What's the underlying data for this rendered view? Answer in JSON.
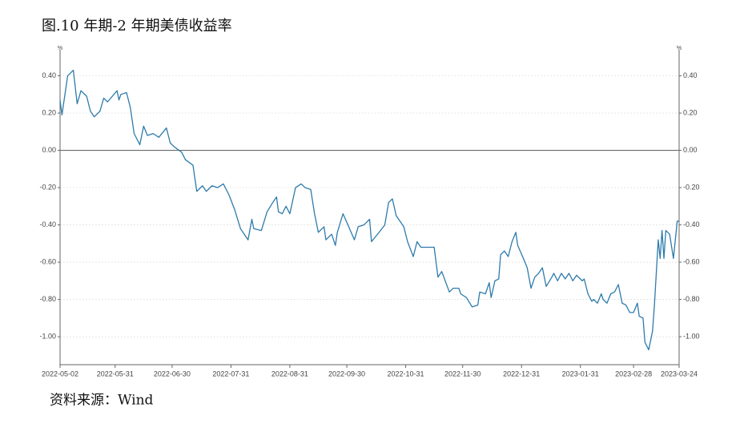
{
  "chart_data": {
    "type": "line",
    "title": "图.10 年期-2 年期美债收益率",
    "source": "资料来源：Wind",
    "y_unit": "%",
    "y2_unit": "%",
    "color": "#2e7bab",
    "x": [
      "2022-05-02",
      "2022-05-03",
      "2022-05-06",
      "2022-05-09",
      "2022-05-11",
      "2022-05-13",
      "2022-05-16",
      "2022-05-18",
      "2022-05-20",
      "2022-05-23",
      "2022-05-25",
      "2022-05-27",
      "2022-06-01",
      "2022-06-02",
      "2022-06-03",
      "2022-06-06",
      "2022-06-08",
      "2022-06-10",
      "2022-06-13",
      "2022-06-15",
      "2022-06-17",
      "2022-06-20",
      "2022-06-23",
      "2022-06-27",
      "2022-06-29",
      "2022-07-01",
      "2022-07-05",
      "2022-07-07",
      "2022-07-11",
      "2022-07-13",
      "2022-07-16",
      "2022-07-18",
      "2022-07-21",
      "2022-07-24",
      "2022-07-27",
      "2022-07-30",
      "2022-08-02",
      "2022-08-05",
      "2022-08-09",
      "2022-08-11",
      "2022-08-12",
      "2022-08-16",
      "2022-08-19",
      "2022-08-22",
      "2022-08-24",
      "2022-08-25",
      "2022-08-27",
      "2022-08-29",
      "2022-08-31",
      "2022-09-03",
      "2022-09-06",
      "2022-09-08",
      "2022-09-11",
      "2022-09-13",
      "2022-09-15",
      "2022-09-18",
      "2022-09-19",
      "2022-09-22",
      "2022-09-24",
      "2022-09-25",
      "2022-09-28",
      "2022-10-01",
      "2022-10-04",
      "2022-10-06",
      "2022-10-09",
      "2022-10-12",
      "2022-10-13",
      "2022-10-17",
      "2022-10-20",
      "2022-10-22",
      "2022-10-24",
      "2022-10-26",
      "2022-10-30",
      "2022-11-01",
      "2022-11-04",
      "2022-11-06",
      "2022-11-08",
      "2022-11-12",
      "2022-11-15",
      "2022-11-17",
      "2022-11-19",
      "2022-11-23",
      "2022-11-25",
      "2022-11-28",
      "2022-11-29",
      "2022-12-02",
      "2022-12-05",
      "2022-12-08",
      "2022-12-09",
      "2022-12-12",
      "2022-12-14",
      "2022-12-15",
      "2022-12-17",
      "2022-12-19",
      "2022-12-20",
      "2022-12-22",
      "2022-12-24",
      "2022-12-26",
      "2022-12-28",
      "2022-12-29",
      "2023-01-01",
      "2023-01-03",
      "2023-01-05",
      "2023-01-07",
      "2023-01-09",
      "2023-01-11",
      "2023-01-13",
      "2023-01-16",
      "2023-01-17",
      "2023-01-19",
      "2023-01-21",
      "2023-01-23",
      "2023-01-25",
      "2023-01-27",
      "2023-01-29",
      "2023-02-01",
      "2023-02-02",
      "2023-02-04",
      "2023-02-06",
      "2023-02-07",
      "2023-02-09",
      "2023-02-11",
      "2023-02-12",
      "2023-02-14",
      "2023-02-16",
      "2023-02-18",
      "2023-02-20",
      "2023-02-22",
      "2023-02-24",
      "2023-02-26",
      "2023-02-28",
      "2023-03-02",
      "2023-03-03",
      "2023-03-05",
      "2023-03-06",
      "2023-03-08",
      "2023-03-10",
      "2023-03-11",
      "2023-03-13",
      "2023-03-14",
      "2023-03-15",
      "2023-03-16",
      "2023-03-17",
      "2023-03-19",
      "2023-03-21",
      "2023-03-22",
      "2023-03-23",
      "2023-03-24"
    ],
    "values": [
      0.27,
      0.19,
      0.4,
      0.43,
      0.25,
      0.32,
      0.29,
      0.21,
      0.18,
      0.21,
      0.28,
      0.26,
      0.32,
      0.27,
      0.3,
      0.31,
      0.23,
      0.09,
      0.03,
      0.13,
      0.08,
      0.09,
      0.07,
      0.12,
      0.04,
      0.02,
      -0.01,
      -0.05,
      -0.08,
      -0.22,
      -0.19,
      -0.22,
      -0.19,
      -0.2,
      -0.18,
      -0.24,
      -0.32,
      -0.42,
      -0.48,
      -0.37,
      -0.42,
      -0.43,
      -0.33,
      -0.28,
      -0.25,
      -0.33,
      -0.34,
      -0.3,
      -0.34,
      -0.2,
      -0.18,
      -0.2,
      -0.21,
      -0.34,
      -0.44,
      -0.41,
      -0.48,
      -0.45,
      -0.51,
      -0.44,
      -0.34,
      -0.41,
      -0.48,
      -0.41,
      -0.4,
      -0.37,
      -0.49,
      -0.44,
      -0.4,
      -0.28,
      -0.26,
      -0.35,
      -0.41,
      -0.49,
      -0.57,
      -0.49,
      -0.52,
      -0.52,
      -0.52,
      -0.68,
      -0.65,
      -0.76,
      -0.74,
      -0.74,
      -0.77,
      -0.79,
      -0.84,
      -0.83,
      -0.76,
      -0.77,
      -0.71,
      -0.79,
      -0.7,
      -0.69,
      -0.56,
      -0.54,
      -0.57,
      -0.49,
      -0.44,
      -0.51,
      -0.58,
      -0.63,
      -0.74,
      -0.68,
      -0.66,
      -0.63,
      -0.73,
      -0.68,
      -0.66,
      -0.7,
      -0.66,
      -0.69,
      -0.66,
      -0.7,
      -0.67,
      -0.7,
      -0.69,
      -0.77,
      -0.81,
      -0.8,
      -0.82,
      -0.77,
      -0.8,
      -0.82,
      -0.77,
      -0.76,
      -0.72,
      -0.82,
      -0.83,
      -0.87,
      -0.87,
      -0.82,
      -0.89,
      -0.9,
      -1.03,
      -1.07,
      -0.97,
      -0.83,
      -0.48,
      -0.58,
      -0.43,
      -0.58,
      -0.43,
      -0.45,
      -0.58,
      -0.48,
      -0.38,
      -0.38
    ],
    "xlim": [
      "2022-05-02",
      "2023-03-24"
    ],
    "xticks": [
      "2022-05-02",
      "2022-05-31",
      "2022-06-30",
      "2022-07-31",
      "2022-08-31",
      "2022-09-30",
      "2022-10-31",
      "2022-11-30",
      "2022-12-31",
      "2023-01-31",
      "2023-02-28",
      "2023-03-24"
    ],
    "ylim": [
      -1.15,
      0.54
    ],
    "yticks": [
      {
        "value": 0.4,
        "label": "0.40"
      },
      {
        "value": 0.2,
        "label": "0.20"
      },
      {
        "value": 0,
        "label": "0.00"
      },
      {
        "value": -0.2,
        "label": "-0.20"
      },
      {
        "value": -0.4,
        "label": "-0.40"
      },
      {
        "value": -0.6,
        "label": "-0.60"
      },
      {
        "value": -0.8,
        "label": "-0.80"
      },
      {
        "value": -1,
        "label": "-1.00"
      }
    ],
    "y2lim": [
      -1.15,
      0.54
    ],
    "y2ticks": [
      {
        "value": 0.4,
        "label": "0.40"
      },
      {
        "value": 0.2,
        "label": "0.20"
      },
      {
        "value": 0,
        "label": "0.00"
      },
      {
        "value": -0.2,
        "label": "-0.20"
      },
      {
        "value": -0.4,
        "label": "-0.40"
      },
      {
        "value": -0.6,
        "label": "-0.60"
      },
      {
        "value": -0.8,
        "label": "-0.80"
      },
      {
        "value": -1,
        "label": "-1.00"
      }
    ],
    "grid": true
  }
}
